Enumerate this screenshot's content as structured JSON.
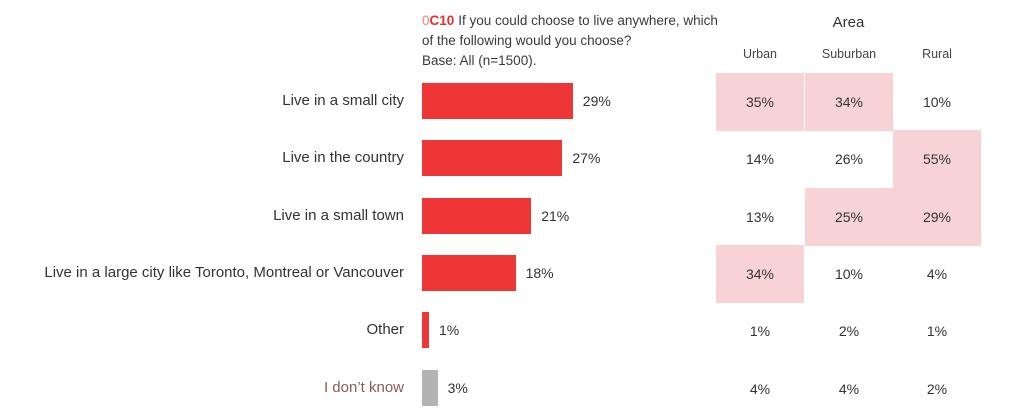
{
  "question": {
    "prefix": "0",
    "code": "C10",
    "text": "If you could choose to live anywhere, which of the following would you choose?",
    "base": "Base: All (n=1500)."
  },
  "area": {
    "title": "Area",
    "columns": [
      "Urban",
      "Suburban",
      "Rural"
    ]
  },
  "colors": {
    "bar": "#ee3636",
    "bar_muted": "#b3b3b3",
    "highlight": "#f7d3d6"
  },
  "chart_data": {
    "type": "bar",
    "orientation": "horizontal",
    "categories": [
      "Live in a small city",
      "Live in the country",
      "Live in a small town",
      "Live in a large city like Toronto, Montreal or Vancouver",
      "Other",
      "I don’t know"
    ],
    "values": [
      29,
      27,
      21,
      18,
      1,
      3
    ],
    "value_labels": [
      "29%",
      "27%",
      "21%",
      "18%",
      "1%",
      "3%"
    ],
    "xlim": [
      0,
      100
    ],
    "grid": false
  },
  "table": {
    "rows": [
      {
        "cells": [
          "35%",
          "34%",
          "10%"
        ],
        "highlight": [
          true,
          true,
          false
        ]
      },
      {
        "cells": [
          "14%",
          "26%",
          "55%"
        ],
        "highlight": [
          false,
          false,
          true
        ]
      },
      {
        "cells": [
          "13%",
          "25%",
          "29%"
        ],
        "highlight": [
          false,
          true,
          true
        ]
      },
      {
        "cells": [
          "34%",
          "10%",
          "4%"
        ],
        "highlight": [
          true,
          false,
          false
        ]
      },
      {
        "cells": [
          "1%",
          "2%",
          "1%"
        ],
        "highlight": [
          false,
          false,
          false
        ]
      },
      {
        "cells": [
          "4%",
          "4%",
          "2%"
        ],
        "highlight": [
          false,
          false,
          false
        ]
      }
    ]
  }
}
